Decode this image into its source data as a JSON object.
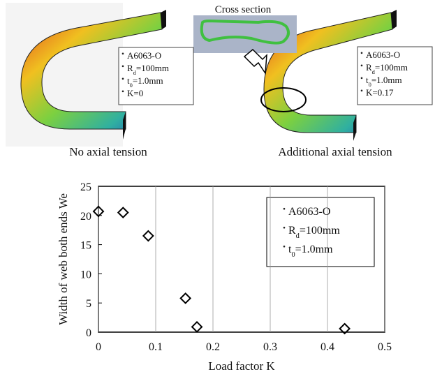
{
  "figures": {
    "cross_section_label": "Cross section",
    "panels": [
      {
        "caption": "No axial tension",
        "params": [
          [
            "A6063-O"
          ],
          [
            "R",
            "d",
            "=100mm"
          ],
          [
            "t",
            "0",
            "=1.0mm"
          ],
          [
            "K=0"
          ]
        ]
      },
      {
        "caption": "Additional axial tension",
        "params": [
          [
            "A6063-O"
          ],
          [
            "R",
            "d",
            "=100mm"
          ],
          [
            "t",
            "0",
            "=1.0mm"
          ],
          [
            "K=0.17"
          ]
        ]
      }
    ]
  },
  "chart_data": {
    "type": "scatter",
    "x_label": "Load factor K",
    "y_label": [
      "Width of web both ends W",
      "e"
    ],
    "x": [
      0,
      0.043,
      0.087,
      0.152,
      0.172,
      0.43
    ],
    "values": [
      20.7,
      20.5,
      16.5,
      5.8,
      0.9,
      0.6
    ],
    "color": "#000000",
    "xlim": [
      0,
      0.5
    ],
    "xticks": [
      0,
      0.1,
      0.2,
      0.3,
      0.4,
      0.5
    ],
    "ylim": [
      0,
      25
    ],
    "yticks": [
      0,
      5,
      10,
      15,
      20,
      25
    ],
    "grid": true,
    "legend_lines": [
      [
        "A6063-O"
      ],
      [
        "R",
        "d",
        "=100mm"
      ],
      [
        "t",
        "0",
        "=1.0mm"
      ]
    ]
  }
}
